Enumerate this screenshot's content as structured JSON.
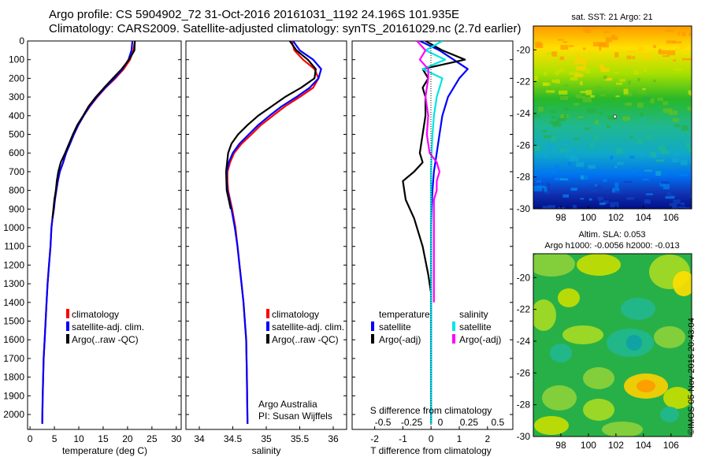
{
  "header": {
    "line1": "Argo profile: CS 5904902_72 31-Oct-2016 20161031_1192 24.196S 101.935E",
    "line2": "Climatology: CARS2009. Satellite-adjusted climatology: synTS_20161029.nc (2.7d earlier)"
  },
  "footer": {
    "stamp": "©IMOS 05-Nov-2016 20:43:04"
  },
  "colors": {
    "climatology": "#ff0000",
    "satellite": "#0000ff",
    "argo": "#000000",
    "salinity_satellite": "#00e5e5",
    "salinity_argo": "#ff00ff"
  },
  "chart_data": [
    {
      "type": "line",
      "id": "temperature",
      "xlabel": "temperature (deg C)",
      "xlim": [
        -0.5,
        31
      ],
      "ylim": [
        2080,
        0
      ],
      "y_reversed": true,
      "xticks": [
        0,
        5,
        10,
        15,
        20,
        25,
        30
      ],
      "xtick_labels": [
        "0",
        "5",
        "10",
        "15",
        "20",
        "25",
        "30"
      ],
      "yticks": [
        0,
        100,
        200,
        300,
        400,
        500,
        600,
        700,
        800,
        900,
        1000,
        1100,
        1200,
        1300,
        1400,
        1500,
        1600,
        1700,
        1800,
        1900,
        2000
      ],
      "ytick_labels": [
        "0",
        "100",
        "200",
        "300",
        "400",
        "500",
        "600",
        "700",
        "800",
        "900",
        "1000",
        "1100",
        "1200",
        "1300",
        "1400",
        "1500",
        "1600",
        "1700",
        "1800",
        "1900",
        "2000"
      ],
      "legend": [
        "climatology",
        "satellite-adj. clim.",
        "Argo(..raw -QC)"
      ],
      "series": [
        {
          "name": "climatology",
          "color": "#ff0000",
          "x": [
            21.5,
            21.2,
            20.5,
            19.2,
            17.5,
            15.5,
            13.8,
            12.3,
            11.0,
            9.9,
            9.0,
            8.2,
            7.4,
            6.8,
            6.1,
            5.7,
            5.4,
            5.1,
            4.9,
            4.6,
            4.4,
            4.2,
            3.9,
            3.6,
            3.4,
            3.2,
            3.0,
            2.8,
            2.7,
            2.6,
            2.5
          ],
          "y": [
            0,
            50,
            100,
            150,
            200,
            250,
            300,
            350,
            400,
            450,
            500,
            550,
            600,
            650,
            700,
            750,
            800,
            850,
            900,
            950,
            1000,
            1100,
            1200,
            1300,
            1400,
            1500,
            1600,
            1700,
            1800,
            1900,
            2050
          ]
        },
        {
          "name": "satellite-adj. clim.",
          "color": "#0000ff",
          "x": [
            21.0,
            20.8,
            20.2,
            19.0,
            17.3,
            15.4,
            13.7,
            12.2,
            11.0,
            9.9,
            9.0,
            8.2,
            7.4,
            6.8,
            6.1,
            5.7,
            5.4,
            5.1,
            4.9,
            4.6,
            4.4,
            4.2,
            3.9,
            3.6,
            3.4,
            3.2,
            3.0,
            2.8,
            2.7,
            2.6,
            2.5
          ],
          "y": [
            0,
            50,
            100,
            150,
            200,
            250,
            300,
            350,
            400,
            450,
            500,
            550,
            600,
            650,
            700,
            750,
            800,
            850,
            900,
            950,
            1000,
            1100,
            1200,
            1300,
            1400,
            1500,
            1600,
            1700,
            1800,
            1900,
            2050
          ]
        },
        {
          "name": "Argo(..raw -QC)",
          "color": "#000000",
          "x": [
            21.5,
            21.4,
            20.3,
            18.8,
            17.0,
            15.2,
            13.5,
            12.0,
            10.9,
            9.7,
            8.8,
            8.0,
            7.2,
            6.3,
            5.8,
            5.5,
            5.3,
            5.0,
            4.8,
            4.6
          ],
          "y": [
            0,
            50,
            100,
            150,
            200,
            250,
            300,
            350,
            400,
            450,
            500,
            550,
            600,
            650,
            700,
            750,
            800,
            850,
            900,
            950
          ]
        }
      ]
    },
    {
      "type": "line",
      "id": "salinity",
      "xlabel": "salinity",
      "xlim": [
        33.8,
        36.2
      ],
      "ylim": [
        2080,
        0
      ],
      "y_reversed": true,
      "xticks": [
        34,
        34.5,
        35,
        35.5,
        36
      ],
      "xtick_labels": [
        "34",
        "34.5",
        "35",
        "35.5",
        "36"
      ],
      "legend": [
        "climatology",
        "satellite-adj. clim.",
        "Argo(..raw -QC)"
      ],
      "annotations": [
        "Argo Australia",
        "PI: Susan Wijffels"
      ],
      "series": [
        {
          "name": "climatology",
          "color": "#ff0000",
          "x": [
            35.38,
            35.42,
            35.55,
            35.72,
            35.78,
            35.7,
            35.5,
            35.28,
            35.1,
            34.92,
            34.78,
            34.63,
            34.52,
            34.46,
            34.42,
            34.42,
            34.43,
            34.46,
            34.49,
            34.54,
            34.57,
            34.6,
            34.63,
            34.66,
            34.68,
            34.7,
            34.71,
            34.72
          ],
          "y": [
            0,
            50,
            100,
            150,
            200,
            250,
            300,
            350,
            400,
            450,
            500,
            550,
            600,
            650,
            700,
            750,
            800,
            850,
            900,
            1000,
            1100,
            1200,
            1300,
            1400,
            1500,
            1600,
            1800,
            2050
          ]
        },
        {
          "name": "satellite-adj. clim.",
          "color": "#0000ff",
          "x": [
            35.4,
            35.5,
            35.7,
            35.82,
            35.78,
            35.65,
            35.45,
            35.23,
            35.05,
            34.88,
            34.74,
            34.6,
            34.5,
            34.44,
            34.41,
            34.41,
            34.42,
            34.45,
            34.48,
            34.53,
            34.57,
            34.6,
            34.63,
            34.66,
            34.68,
            34.7,
            34.71,
            34.72
          ],
          "y": [
            0,
            50,
            100,
            150,
            200,
            250,
            300,
            350,
            400,
            450,
            500,
            550,
            600,
            650,
            700,
            750,
            800,
            850,
            900,
            1000,
            1100,
            1200,
            1300,
            1400,
            1500,
            1600,
            1800,
            2050
          ]
        },
        {
          "name": "Argo(..raw -QC)",
          "color": "#000000",
          "x": [
            35.35,
            35.45,
            35.62,
            35.74,
            35.72,
            35.52,
            35.28,
            35.08,
            34.88,
            34.72,
            34.58,
            34.48,
            34.43,
            34.4,
            34.41,
            34.44,
            34.47
          ],
          "y": [
            0,
            50,
            100,
            150,
            200,
            250,
            300,
            350,
            400,
            450,
            500,
            550,
            600,
            700,
            800,
            850,
            900
          ]
        }
      ]
    },
    {
      "type": "line",
      "id": "differences",
      "xlabel": "T difference from climatology",
      "xlim": [
        -2.8,
        2.9
      ],
      "ylim": [
        2080,
        0
      ],
      "y_reversed": true,
      "xticks": [
        -2,
        -1,
        0,
        1,
        2
      ],
      "xtick_labels": [
        "-2",
        "-1",
        "0",
        "1",
        "2"
      ],
      "secondary_xaxis": {
        "label": "S difference from climatology",
        "xticks": [
          -0.5,
          -0.25,
          0,
          0.25,
          0.5
        ],
        "xtick_labels": [
          "-0.5",
          "-0.25",
          "0",
          "0.25",
          "0.5"
        ]
      },
      "legend_titles": [
        "temperature",
        "salinity"
      ],
      "legend": [
        "satellite",
        "Argo(-adj)",
        "satellite",
        "Argo(-adj)"
      ],
      "series": [
        {
          "name": "temperature satellite",
          "color": "#0000ff",
          "x": [
            -0.4,
            0.3,
            0.8,
            1.3,
            1.0,
            0.8,
            0.6,
            0.5,
            0.4,
            0.3,
            0.2,
            0.1,
            0.05,
            0.02,
            0,
            0
          ],
          "y": [
            0,
            50,
            100,
            150,
            200,
            250,
            300,
            350,
            400,
            500,
            600,
            700,
            800,
            900,
            1000,
            2050
          ]
        },
        {
          "name": "temperature Argo(-adj)",
          "color": "#000000",
          "x": [
            -0.2,
            0.4,
            1.2,
            -0.3,
            -0.1,
            -0.3,
            -0.2,
            -0.2,
            -0.3,
            -0.4,
            -0.3,
            -0.6,
            -1.0,
            -0.9,
            -0.6,
            -0.3,
            -0.1,
            0
          ],
          "y": [
            0,
            50,
            100,
            150,
            200,
            250,
            300,
            400,
            500,
            600,
            650,
            700,
            750,
            850,
            950,
            1100,
            1250,
            1350
          ]
        },
        {
          "name": "salinity satellite",
          "color": "#00e5e5",
          "x": [
            0.4,
            -0.2,
            0.5,
            -0.3,
            0.4,
            0.2,
            0.1,
            0.05,
            0.02,
            0,
            0,
            0
          ],
          "y": [
            0,
            50,
            100,
            150,
            200,
            300,
            400,
            500,
            600,
            700,
            1000,
            2050
          ]
        },
        {
          "name": "salinity Argo(-adj)",
          "color": "#ff00ff",
          "x": [
            -0.5,
            -0.2,
            -0.4,
            -0.1,
            -0.1,
            -0.2,
            -0.1,
            -0.15,
            -0.1,
            -0.05,
            0.2,
            0.3,
            0.2,
            0.2,
            0.1,
            0.1
          ],
          "y": [
            0,
            50,
            100,
            150,
            200,
            300,
            400,
            500,
            550,
            600,
            650,
            700,
            750,
            800,
            850,
            1400
          ]
        }
      ]
    },
    {
      "type": "heatmap",
      "id": "sst-map",
      "title": "sat. SST: 21  Argo: 21",
      "xlim": [
        96,
        107.5
      ],
      "ylim": [
        -30,
        -18.5
      ],
      "xticks": [
        98,
        100,
        102,
        104,
        106
      ],
      "xtick_labels": [
        "98",
        "100",
        "102",
        "104",
        "106"
      ],
      "yticks": [
        -20,
        -22,
        -24,
        -26,
        -28,
        -30
      ],
      "ytick_labels": [
        "-20",
        "-22",
        "-24",
        "-26",
        "-28",
        "-30"
      ],
      "profile_location": [
        101.935,
        -24.196
      ]
    },
    {
      "type": "heatmap",
      "id": "sla-map",
      "title": "Altim. SLA: 0.053",
      "subtitle": "Argo h1000: -0.0056 h2000: -0.013",
      "xlim": [
        96,
        107.5
      ],
      "ylim": [
        -30,
        -18.5
      ],
      "xticks": [
        98,
        100,
        102,
        104,
        106
      ],
      "xtick_labels": [
        "98",
        "100",
        "102",
        "104",
        "106"
      ],
      "yticks": [
        -20,
        -22,
        -24,
        -26,
        -28,
        -30
      ],
      "ytick_labels": [
        "-20",
        "-22",
        "-24",
        "-26",
        "-28",
        "-30"
      ]
    }
  ]
}
